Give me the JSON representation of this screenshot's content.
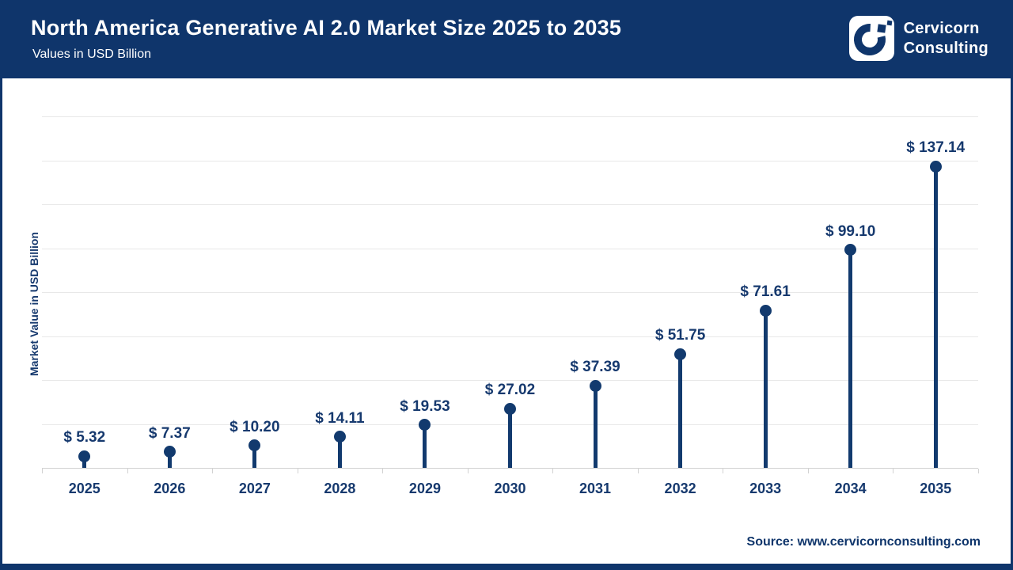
{
  "header": {
    "title": "North America Generative AI 2.0 Market Size 2025 to 2035",
    "subtitle": "Values in USD Billion",
    "logo": {
      "line1": "Cervicorn",
      "line2": "Consulting"
    }
  },
  "chart_data": {
    "type": "bar",
    "variant": "lollipop",
    "title": "North America Generative AI 2.0 Market Size 2025 to 2035",
    "categories": [
      "2025",
      "2026",
      "2027",
      "2028",
      "2029",
      "2030",
      "2031",
      "2032",
      "2033",
      "2034",
      "2035"
    ],
    "values": [
      5.32,
      7.37,
      10.2,
      14.11,
      19.53,
      27.02,
      37.39,
      51.75,
      71.61,
      99.1,
      137.14
    ],
    "value_labels": [
      "$ 5.32",
      "$ 7.37",
      "$ 10.20",
      "$ 14.11",
      "$ 19.53",
      "$ 27.02",
      "$ 37.39",
      "$ 51.75",
      "$ 71.61",
      "$ 99.10",
      "$ 137.14"
    ],
    "xlabel": "",
    "ylabel": "Market Value in USD Billion",
    "ylim": [
      0,
      160
    ],
    "grid_step": 20,
    "grid": true,
    "legend": false,
    "y_tick_labels_shown": false
  },
  "footer": {
    "source": "Source: www.cervicornconsulting.com"
  },
  "colors": {
    "navy_header": "#0f356b",
    "navy_element": "#123a6e",
    "navy_text": "#16396e",
    "gridline": "#e8e8e8",
    "axis": "#d2d2d2",
    "background": "#ffffff"
  }
}
